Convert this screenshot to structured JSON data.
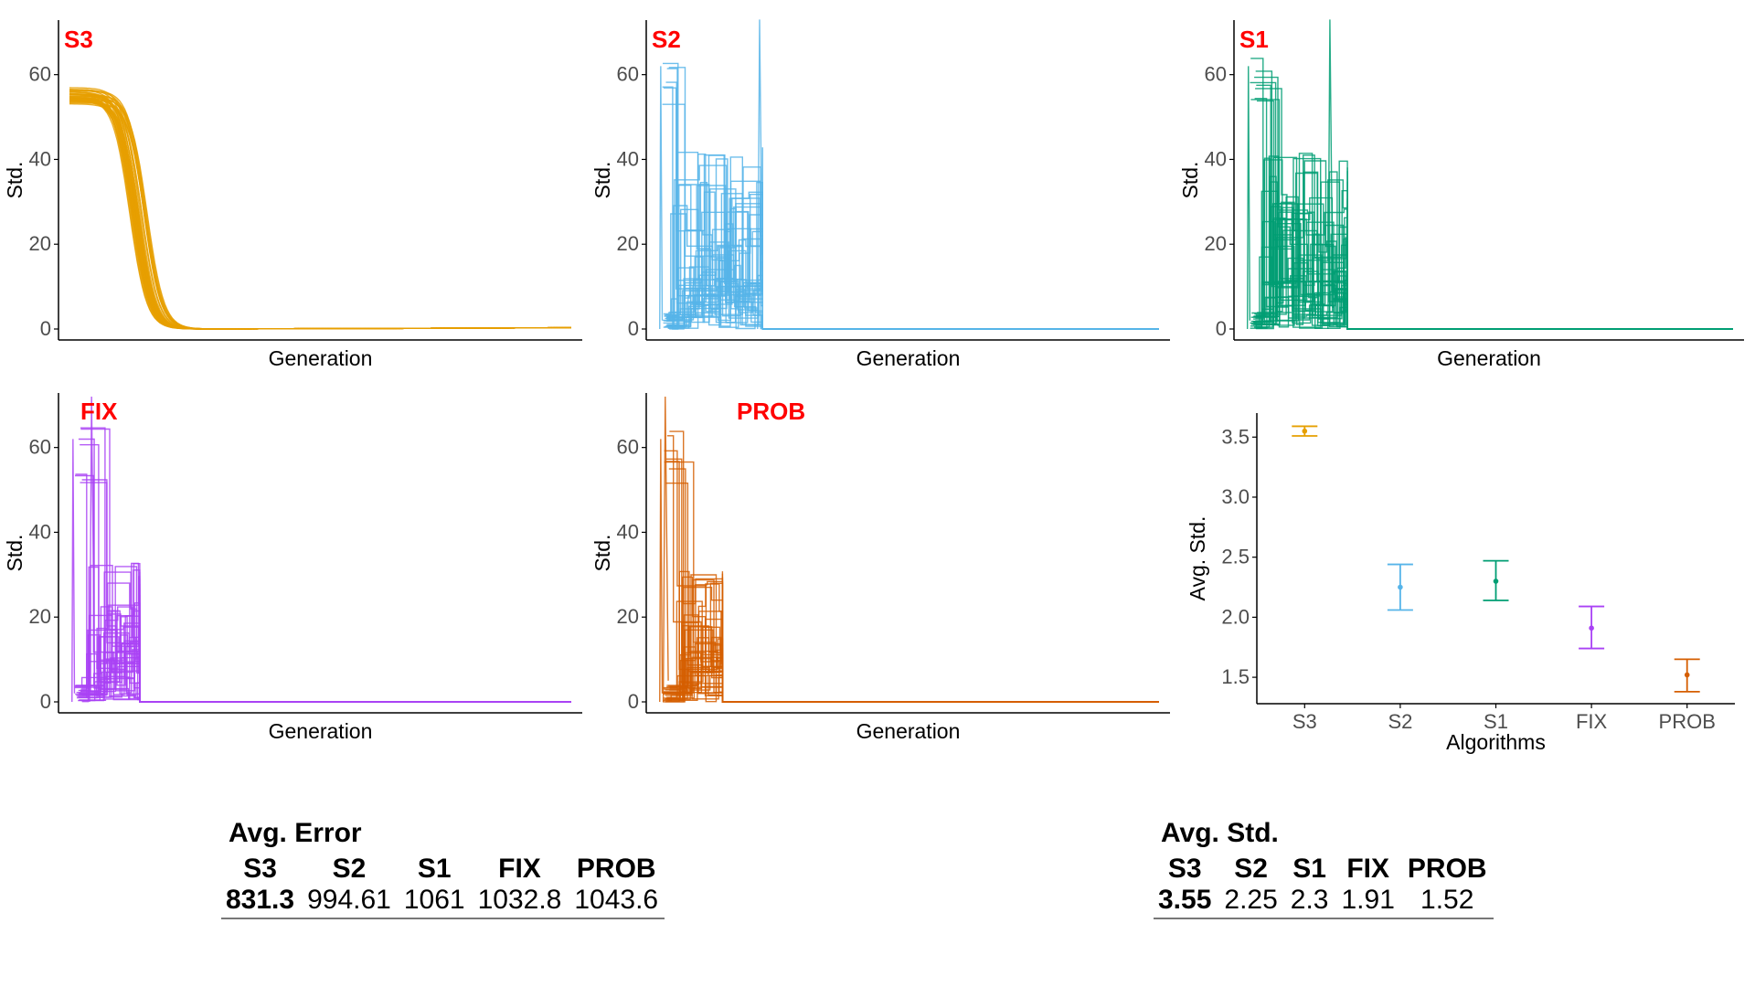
{
  "chart_data": [
    {
      "type": "line",
      "panel_label": "S3",
      "ylabel": "Std.",
      "xlabel": "Generation",
      "ylim": [
        0,
        72
      ],
      "yticks": [
        0,
        20,
        40,
        60
      ],
      "x_ticks_shown": false,
      "color": "#E69F00",
      "series_note": "many overlaid runs",
      "features": {
        "start": 57,
        "collapse_at_frac": 0.14,
        "spike_max": 20
      }
    },
    {
      "type": "line",
      "panel_label": "S2",
      "ylabel": "Std.",
      "xlabel": "Generation",
      "ylim": [
        0,
        72
      ],
      "yticks": [
        0,
        20,
        40,
        60
      ],
      "x_ticks_shown": false,
      "color": "#56B4E9",
      "features": {
        "spike_max": 73,
        "step_levels": [
          18,
          33,
          39
        ],
        "active_until_frac": 0.21
      }
    },
    {
      "type": "line",
      "panel_label": "S1",
      "ylabel": "Std.",
      "xlabel": "Generation",
      "ylim": [
        0,
        72
      ],
      "yticks": [
        0,
        20,
        40,
        60
      ],
      "x_ticks_shown": false,
      "color": "#009E73",
      "features": {
        "spike_max": 73,
        "step_levels": [
          28,
          38
        ],
        "active_until_frac": 0.21
      }
    },
    {
      "type": "line",
      "panel_label": "FIX",
      "ylabel": "Std.",
      "xlabel": "Generation",
      "ylim": [
        0,
        72
      ],
      "yticks": [
        0,
        20,
        40,
        60
      ],
      "x_ticks_shown": false,
      "color": "#A942F5",
      "features": {
        "spike_max": 72,
        "step_levels": [
          20,
          30
        ],
        "active_until_frac": 0.14
      }
    },
    {
      "type": "line",
      "panel_label": "PROB",
      "ylabel": "Std.",
      "xlabel": "Generation",
      "ylim": [
        0,
        72
      ],
      "yticks": [
        0,
        20,
        40,
        60
      ],
      "x_ticks_shown": false,
      "color": "#D55E00",
      "features": {
        "spike_max": 72,
        "step_levels": [
          14,
          28
        ],
        "active_until_frac": 0.13
      }
    },
    {
      "type": "scatter",
      "subtype": "errorbar",
      "ylabel": "Avg. Std.",
      "xlabel": "Algorithms",
      "categories": [
        "S3",
        "S2",
        "S1",
        "FIX",
        "PROB"
      ],
      "means": [
        3.55,
        2.25,
        2.3,
        1.91,
        1.52
      ],
      "lower": [
        3.51,
        2.06,
        2.14,
        1.74,
        1.38
      ],
      "upper": [
        3.59,
        2.44,
        2.47,
        2.09,
        1.65
      ],
      "colors": [
        "#E69F00",
        "#56B4E9",
        "#009E73",
        "#A942F5",
        "#D55E00"
      ],
      "ylim": [
        1.28,
        3.7
      ],
      "yticks": [
        1.5,
        2.0,
        2.5,
        3.0,
        3.5
      ]
    }
  ],
  "tables": [
    {
      "title": "Avg. Error",
      "headers": [
        "S3",
        "S2",
        "S1",
        "FIX",
        "PROB"
      ],
      "values": [
        "831.3",
        "994.61",
        "1061",
        "1032.8",
        "1043.6"
      ],
      "bold_index": 0
    },
    {
      "title": "Avg. Std.",
      "headers": [
        "S3",
        "S2",
        "S1",
        "FIX",
        "PROB"
      ],
      "values": [
        "3.55",
        "2.25",
        "2.3",
        "1.91",
        "1.52"
      ],
      "bold_index": 0
    }
  ],
  "styles": {
    "label_color": "#FF0000",
    "axis_color": "#000000",
    "tick_text_color": "#4D4D4D"
  }
}
